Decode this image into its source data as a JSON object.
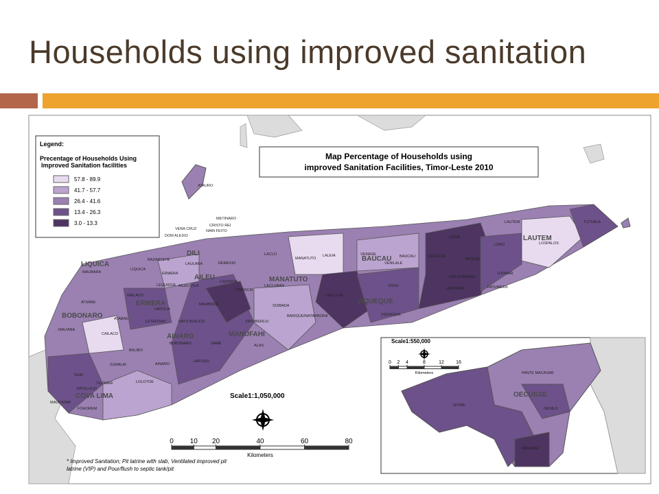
{
  "title": "Households using improved sanitation",
  "map": {
    "title_lines": [
      "Map Percentage of Households using",
      "improved Sanitation Facilities, Timor-Leste 2010"
    ],
    "legend": {
      "heading": "Legend:",
      "title_lines": [
        "Precentage of Households Using",
        "Improved Sanitation facilities"
      ],
      "items": [
        {
          "label": "57.8 - 89.9",
          "color": "#e8dbf0"
        },
        {
          "label": "41.7 - 57.7",
          "color": "#bba4cf"
        },
        {
          "label": "26.4 - 41.6",
          "color": "#9b80b2"
        },
        {
          "label": "13.4 - 26.3",
          "color": "#6d518a"
        },
        {
          "label": "3.0 - 13.3",
          "color": "#4d3461"
        }
      ]
    },
    "scale": "Scale1:1,050,000",
    "scale_bar": {
      "ticks": [
        0,
        10,
        20,
        40,
        60,
        80
      ],
      "unit": "Kilometers"
    },
    "inset": {
      "scale": "Scale1:550,000",
      "ticks": [
        0,
        2,
        4,
        8,
        12,
        16
      ],
      "unit": "Kilometers",
      "district": "OECUSSE",
      "subdistricts": [
        "PANTE MACASAR",
        "NITIBE",
        "OESILO",
        "PASSABE"
      ]
    },
    "districts": [
      "LIQUICA",
      "DILI",
      "AILEU",
      "MANATUTO",
      "BAUCAU",
      "LAUTEM",
      "VIQUEQUE",
      "ERMERA",
      "BOBONARO",
      "AINARO",
      "MANUFAHI",
      "COVA LIMA"
    ],
    "subdistricts": [
      "ATAURO",
      "METINARO",
      "CRISTO REI",
      "NAIN FEITO",
      "VERA CRUZ",
      "DOM ALEIXO",
      "BAZARTETE",
      "MAUBARA",
      "LIQUICA",
      "LAULARA",
      "REMEXIO",
      "LACLO",
      "MANATUTO",
      "LALEIA",
      "VEMASE",
      "BAUCAU",
      "LAGA",
      "LAUTEM",
      "TUTUALA",
      "LOSPALOS",
      "LURO",
      "QUELICAI",
      "BAGUIA",
      "ILIOMAR",
      "VENILALE",
      "OSSU",
      "UATUCARBAU",
      "UATULARI",
      "LACLUTA",
      "VIQUEQUE",
      "LACLUBAR",
      "SOIBADA",
      "BARIQUE/NATARBORA",
      "FATUBERLIU",
      "ALAS",
      "TURISCAI",
      "SAME",
      "HATUDO",
      "HATU BUILICO",
      "MAUBISSE",
      "LIQUIDOE",
      "AILEU VILA",
      "LEQUIDOE",
      "ERMERA",
      "RAILACO",
      "HATOLIA",
      "LETEFOHO",
      "ATSABE",
      "ATABAE",
      "CAILACO",
      "MALIANA",
      "BALIBO",
      "BOBONARO",
      "AINARO",
      "ZUMALAI",
      "LOLOTOE",
      "SUAI",
      "FATULULIC",
      "FOHOREM",
      "TILOMAR",
      "MAUCATAR",
      "FATUMEAN"
    ],
    "footnote_lines": [
      "* Improved Sanitation; Pit latrine with slab, Ventilated improved pit",
      "latrine (VIP) and Pour/flush to septic tank/pit"
    ]
  }
}
